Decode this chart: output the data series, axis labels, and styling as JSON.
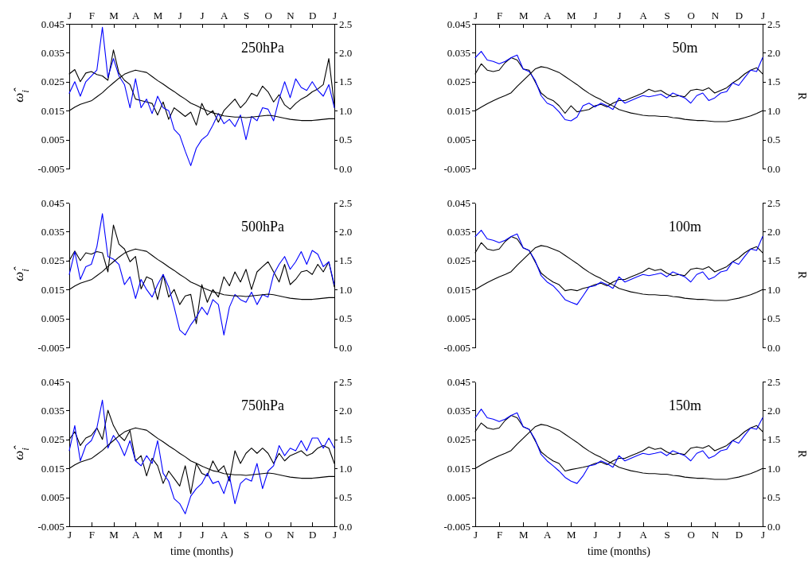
{
  "chart_data": [
    {
      "type": "line",
      "annotations": [
        "250hPa"
      ],
      "ylabel": "ω̂$_{i}$",
      "categories": [
        "J",
        null,
        null,
        null,
        "F",
        null,
        null,
        null,
        "M",
        null,
        null,
        null,
        "A",
        null,
        null,
        null,
        "M",
        null,
        null,
        null,
        "J",
        null,
        null,
        null,
        "J",
        null,
        null,
        null,
        "A",
        null,
        null,
        null,
        "S",
        null,
        null,
        null,
        "O",
        null,
        null,
        null,
        "N",
        null,
        null,
        null,
        "D",
        null,
        null,
        null,
        "J"
      ],
      "ylim": [
        -0.005,
        0.045
      ],
      "yticks": [
        -0.005,
        0.005,
        0.015,
        0.025,
        0.035,
        0.045
      ],
      "y2lim": [
        0,
        2.5
      ],
      "y2ticks": [
        {
          "value": 0,
          "label": "0.0"
        },
        0.5,
        {
          "value": 1,
          "label": "1.0"
        },
        1.5,
        {
          "value": 2,
          "label": "2.0"
        },
        2.5
      ],
      "series": [
        {
          "color": "#000000",
          "values": [
            0.0277,
            0.0292,
            0.025,
            0.028,
            0.0285,
            0.0275,
            0.027,
            0.0255,
            0.036,
            0.028,
            0.0255,
            0.024,
            0.019,
            0.0185,
            0.018,
            0.0175,
            0.0135,
            0.018,
            0.012,
            0.016,
            0.0145,
            0.013,
            0.0145,
            0.01,
            0.0175,
            0.0135,
            0.015,
            0.011,
            0.015,
            0.017,
            0.019,
            0.016,
            0.018,
            0.021,
            0.02,
            0.0235,
            0.0215,
            0.018,
            0.0205,
            0.017,
            0.0155,
            0.0175,
            0.019,
            0.02,
            0.0215,
            0.0225,
            0.024,
            0.033,
            0.017
          ]
        },
        {
          "color": "#0000ff",
          "values": [
            0.021,
            0.025,
            0.02,
            0.025,
            0.027,
            0.029,
            0.0438,
            0.0265,
            0.033,
            0.027,
            0.024,
            0.016,
            0.026,
            0.016,
            0.019,
            0.014,
            0.02,
            0.016,
            0.015,
            0.0085,
            0.0065,
            0.001,
            -0.004,
            0.002,
            0.005,
            0.0065,
            0.01,
            0.014,
            0.0105,
            0.012,
            0.0095,
            0.0135,
            0.005,
            0.013,
            0.0115,
            0.016,
            0.0155,
            0.0115,
            0.019,
            0.025,
            0.0195,
            0.026,
            0.023,
            0.022,
            0.025,
            0.022,
            0.02,
            0.024,
            0.016
          ]
        },
        {
          "color": "#000000",
          "axis": "y2",
          "values": [
            1.0,
            1.06,
            1.11,
            1.14,
            1.17,
            1.24,
            1.31,
            1.4,
            1.48,
            1.56,
            1.63,
            1.67,
            1.7,
            1.68,
            1.66,
            1.59,
            1.52,
            1.46,
            1.39,
            1.33,
            1.26,
            1.2,
            1.13,
            1.09,
            1.04,
            1.0,
            0.96,
            0.94,
            0.91,
            0.9,
            0.89,
            0.89,
            0.88,
            0.89,
            0.9,
            0.91,
            0.92,
            0.91,
            0.89,
            0.87,
            0.85,
            0.84,
            0.83,
            0.83,
            0.83,
            0.84,
            0.85,
            0.86,
            0.86
          ]
        }
      ]
    },
    {
      "type": "line",
      "annotations": [
        "50m"
      ],
      "y2label": "R",
      "categories": [
        "J",
        null,
        null,
        null,
        "F",
        null,
        null,
        null,
        "M",
        null,
        null,
        null,
        "A",
        null,
        null,
        null,
        "M",
        null,
        null,
        null,
        "J",
        null,
        null,
        null,
        "J",
        null,
        null,
        null,
        "A",
        null,
        null,
        null,
        "S",
        null,
        null,
        null,
        "O",
        null,
        null,
        null,
        "N",
        null,
        null,
        null,
        "D",
        null,
        null,
        null,
        "J"
      ],
      "ylim": [
        -0.005,
        0.045
      ],
      "yticks": [
        -0.005,
        0.005,
        0.015,
        0.025,
        0.035,
        0.045
      ],
      "y2lim": [
        0,
        2.5
      ],
      "y2ticks": [
        {
          "value": 0,
          "label": "0.0"
        },
        0.5,
        {
          "value": 1,
          "label": "1.0"
        },
        1.5,
        {
          "value": 2,
          "label": "2.0"
        },
        2.5
      ],
      "series": [
        {
          "color": "#000000",
          "values": [
            0.0277,
            0.0312,
            0.029,
            0.0285,
            0.029,
            0.0316,
            0.0333,
            0.0325,
            0.0294,
            0.029,
            0.025,
            0.0211,
            0.0194,
            0.0185,
            0.0167,
            0.0141,
            0.0167,
            0.0146,
            0.015,
            0.0154,
            0.0167,
            0.0172,
            0.0163,
            0.0176,
            0.0185,
            0.0185,
            0.0194,
            0.0202,
            0.0211,
            0.0224,
            0.0216,
            0.022,
            0.0207,
            0.0198,
            0.0202,
            0.0198,
            0.022,
            0.0224,
            0.022,
            0.0229,
            0.0211,
            0.022,
            0.0229,
            0.0246,
            0.0259,
            0.0277,
            0.029,
            0.0298,
            0.0277
          ]
        },
        {
          "color": "#0000ff",
          "values": [
            0.0333,
            0.0355,
            0.0325,
            0.032,
            0.0312,
            0.032,
            0.0333,
            0.0342,
            0.0294,
            0.0285,
            0.0255,
            0.0202,
            0.0176,
            0.0167,
            0.0146,
            0.0119,
            0.0115,
            0.0128,
            0.0167,
            0.0176,
            0.0163,
            0.0176,
            0.0167,
            0.0154,
            0.0194,
            0.0176,
            0.0185,
            0.0194,
            0.0202,
            0.0198,
            0.0202,
            0.0207,
            0.0194,
            0.0211,
            0.0202,
            0.0194,
            0.0176,
            0.0202,
            0.0211,
            0.0185,
            0.0194,
            0.0211,
            0.0216,
            0.0246,
            0.0237,
            0.0264,
            0.029,
            0.0285,
            0.0333
          ]
        },
        {
          "color": "#000000",
          "axis": "y2",
          "values": [
            1.0,
            1.06,
            1.12,
            1.17,
            1.22,
            1.26,
            1.31,
            1.42,
            1.52,
            1.62,
            1.72,
            1.76,
            1.74,
            1.7,
            1.66,
            1.59,
            1.52,
            1.45,
            1.37,
            1.3,
            1.24,
            1.19,
            1.13,
            1.08,
            1.02,
            0.99,
            0.96,
            0.94,
            0.92,
            0.91,
            0.91,
            0.9,
            0.9,
            0.88,
            0.87,
            0.85,
            0.84,
            0.83,
            0.83,
            0.82,
            0.81,
            0.81,
            0.81,
            0.83,
            0.85,
            0.88,
            0.91,
            0.95,
            1.0
          ]
        }
      ]
    },
    {
      "type": "line",
      "annotations": [
        "500hPa"
      ],
      "ylabel": "ω̂$_{i}$",
      "categories": [
        null,
        null,
        null,
        null,
        null,
        null,
        null,
        null,
        null,
        null,
        null,
        null,
        null,
        null,
        null,
        null,
        null,
        null,
        null,
        null,
        null,
        null,
        null,
        null,
        null,
        null,
        null,
        null,
        null,
        null,
        null,
        null,
        null,
        null,
        null,
        null,
        null,
        null,
        null,
        null,
        null,
        null,
        null,
        null,
        null,
        null,
        null,
        null,
        null
      ],
      "ylim": [
        -0.005,
        0.045
      ],
      "yticks": [
        -0.005,
        0.005,
        0.015,
        0.025,
        0.035,
        0.045
      ],
      "y2lim": [
        0,
        2.5
      ],
      "y2ticks": [
        {
          "value": 0,
          "label": "0.0"
        },
        0.5,
        {
          "value": 1,
          "label": "1.0"
        },
        1.5,
        {
          "value": 2,
          "label": "2.0"
        },
        2.5
      ],
      "series": [
        {
          "color": "#000000",
          "values": [
            0.025,
            0.0283,
            0.025,
            0.0277,
            0.0272,
            0.0281,
            0.0277,
            0.0211,
            0.0373,
            0.0307,
            0.029,
            0.0246,
            0.0264,
            0.0152,
            0.0194,
            0.0185,
            0.0115,
            0.0202,
            0.0124,
            0.015,
            0.0098,
            0.0128,
            0.0133,
            0.0032,
            0.0167,
            0.0106,
            0.015,
            0.0124,
            0.0194,
            0.0163,
            0.0211,
            0.0176,
            0.022,
            0.015,
            0.0211,
            0.0229,
            0.0246,
            0.0211,
            0.0176,
            0.0237,
            0.0167,
            0.0185,
            0.0211,
            0.0216,
            0.0202,
            0.0237,
            0.0211,
            0.0246,
            0.0159
          ]
        },
        {
          "color": "#0000ff",
          "values": [
            0.0202,
            0.0281,
            0.0185,
            0.0229,
            0.0237,
            0.0298,
            0.0412,
            0.0264,
            0.0255,
            0.0237,
            0.0167,
            0.0194,
            0.0119,
            0.0185,
            0.015,
            0.0124,
            0.0167,
            0.0202,
            0.0159,
            0.0089,
            0.001,
            -0.0007,
            0.0028,
            0.0054,
            0.0089,
            0.0063,
            0.0115,
            0.0098,
            -0.0007,
            0.0089,
            0.0133,
            0.0115,
            0.0106,
            0.0141,
            0.0098,
            0.0133,
            0.0124,
            0.0202,
            0.0237,
            0.0264,
            0.022,
            0.0246,
            0.0281,
            0.0237,
            0.0285,
            0.0272,
            0.0229,
            0.0246,
            0.0167
          ]
        },
        {
          "color": "#000000",
          "axis": "y2",
          "values": [
            1.0,
            1.06,
            1.11,
            1.14,
            1.17,
            1.24,
            1.31,
            1.4,
            1.48,
            1.56,
            1.63,
            1.67,
            1.7,
            1.68,
            1.66,
            1.59,
            1.52,
            1.46,
            1.39,
            1.33,
            1.26,
            1.2,
            1.13,
            1.09,
            1.04,
            1.0,
            0.96,
            0.94,
            0.91,
            0.9,
            0.89,
            0.89,
            0.88,
            0.89,
            0.9,
            0.91,
            0.92,
            0.91,
            0.89,
            0.87,
            0.85,
            0.84,
            0.83,
            0.83,
            0.83,
            0.84,
            0.85,
            0.86,
            0.86
          ]
        }
      ]
    },
    {
      "type": "line",
      "annotations": [
        "100m"
      ],
      "y2label": "R",
      "categories": [
        null,
        null,
        null,
        null,
        null,
        null,
        null,
        null,
        null,
        null,
        null,
        null,
        null,
        null,
        null,
        null,
        null,
        null,
        null,
        null,
        null,
        null,
        null,
        null,
        null,
        null,
        null,
        null,
        null,
        null,
        null,
        null,
        null,
        null,
        null,
        null,
        null,
        null,
        null,
        null,
        null,
        null,
        null,
        null,
        null,
        null,
        null,
        null,
        null
      ],
      "ylim": [
        -0.005,
        0.045
      ],
      "yticks": [
        -0.005,
        0.005,
        0.015,
        0.025,
        0.035,
        0.045
      ],
      "y2lim": [
        0,
        2.5
      ],
      "y2ticks": [
        {
          "value": 0,
          "label": "0.0"
        },
        0.5,
        {
          "value": 1,
          "label": "1.0"
        },
        1.5,
        {
          "value": 2,
          "label": "2.0"
        },
        2.5
      ],
      "series": [
        {
          "color": "#000000",
          "values": [
            0.0277,
            0.0312,
            0.029,
            0.0285,
            0.029,
            0.0316,
            0.0333,
            0.0325,
            0.0294,
            0.0285,
            0.0246,
            0.0207,
            0.019,
            0.0176,
            0.0167,
            0.0146,
            0.015,
            0.0146,
            0.0154,
            0.0159,
            0.0167,
            0.0172,
            0.0163,
            0.0176,
            0.0185,
            0.0185,
            0.0194,
            0.0202,
            0.0211,
            0.0224,
            0.0216,
            0.022,
            0.0207,
            0.0198,
            0.0202,
            0.0198,
            0.022,
            0.0224,
            0.022,
            0.0229,
            0.0211,
            0.022,
            0.0229,
            0.0246,
            0.0259,
            0.0277,
            0.029,
            0.0298,
            0.0277
          ]
        },
        {
          "color": "#0000ff",
          "values": [
            0.0333,
            0.0355,
            0.0325,
            0.032,
            0.0312,
            0.032,
            0.0333,
            0.0342,
            0.0294,
            0.0285,
            0.025,
            0.0198,
            0.0176,
            0.0163,
            0.0141,
            0.0115,
            0.0106,
            0.0098,
            0.0128,
            0.0159,
            0.0163,
            0.0176,
            0.0167,
            0.0154,
            0.0194,
            0.0176,
            0.0185,
            0.0194,
            0.0202,
            0.0198,
            0.0202,
            0.0207,
            0.0194,
            0.0211,
            0.0202,
            0.0194,
            0.0176,
            0.0202,
            0.0211,
            0.0185,
            0.0194,
            0.0211,
            0.0216,
            0.0246,
            0.0237,
            0.0264,
            0.029,
            0.0285,
            0.0333
          ]
        },
        {
          "color": "#000000",
          "axis": "y2",
          "values": [
            1.0,
            1.06,
            1.12,
            1.17,
            1.22,
            1.26,
            1.31,
            1.42,
            1.52,
            1.62,
            1.72,
            1.76,
            1.74,
            1.7,
            1.66,
            1.59,
            1.52,
            1.45,
            1.37,
            1.3,
            1.24,
            1.19,
            1.13,
            1.08,
            1.02,
            0.99,
            0.96,
            0.94,
            0.92,
            0.91,
            0.91,
            0.9,
            0.9,
            0.88,
            0.87,
            0.85,
            0.84,
            0.83,
            0.83,
            0.82,
            0.81,
            0.81,
            0.81,
            0.83,
            0.85,
            0.88,
            0.91,
            0.95,
            1.0
          ]
        }
      ]
    },
    {
      "type": "line",
      "annotations": [
        "750hPa"
      ],
      "ylabel": "ω̂$_{i}$",
      "xlabel": "time (months)",
      "categories": [
        "J",
        null,
        null,
        null,
        "F",
        null,
        null,
        null,
        "M",
        null,
        null,
        null,
        "A",
        null,
        null,
        null,
        "M",
        null,
        null,
        null,
        "J",
        null,
        null,
        null,
        "J",
        null,
        null,
        null,
        "A",
        null,
        null,
        null,
        "S",
        null,
        null,
        null,
        "O",
        null,
        null,
        null,
        "N",
        null,
        null,
        null,
        "D",
        null,
        null,
        null,
        "J"
      ],
      "ylim": [
        -0.005,
        0.045
      ],
      "yticks": [
        -0.005,
        0.005,
        0.015,
        0.025,
        0.035,
        0.045
      ],
      "y2lim": [
        0,
        2.5
      ],
      "y2ticks": [
        {
          "value": 0,
          "label": "0.0"
        },
        0.5,
        {
          "value": 1,
          "label": "1.0"
        },
        1.5,
        {
          "value": 2,
          "label": "2.0"
        },
        2.5
      ],
      "series": [
        {
          "color": "#000000",
          "values": [
            0.025,
            0.0277,
            0.0229,
            0.0255,
            0.0264,
            0.029,
            0.025,
            0.0351,
            0.0298,
            0.0264,
            0.0246,
            0.0281,
            0.0176,
            0.0194,
            0.0124,
            0.0185,
            0.0159,
            0.0098,
            0.0141,
            0.0115,
            0.0089,
            0.0159,
            0.0063,
            0.0167,
            0.0133,
            0.0124,
            0.0176,
            0.0141,
            0.0159,
            0.0106,
            0.0211,
            0.0167,
            0.0202,
            0.022,
            0.0202,
            0.022,
            0.0202,
            0.0167,
            0.0202,
            0.0176,
            0.0194,
            0.0202,
            0.0211,
            0.0194,
            0.0202,
            0.022,
            0.0229,
            0.022,
            0.0167
          ]
        },
        {
          "color": "#0000ff",
          "values": [
            0.0211,
            0.0298,
            0.0176,
            0.0229,
            0.0246,
            0.029,
            0.0386,
            0.022,
            0.0264,
            0.0237,
            0.0194,
            0.0246,
            0.0176,
            0.0159,
            0.0194,
            0.0167,
            0.0246,
            0.0133,
            0.0106,
            0.0045,
            0.0028,
            -0.0007,
            0.0054,
            0.008,
            0.0098,
            0.0133,
            0.0098,
            0.0106,
            0.0063,
            0.0124,
            0.0028,
            0.0098,
            0.0115,
            0.0106,
            0.0167,
            0.008,
            0.0141,
            0.0159,
            0.0229,
            0.0194,
            0.022,
            0.0211,
            0.0246,
            0.0211,
            0.0255,
            0.0255,
            0.022,
            0.0255,
            0.022
          ]
        },
        {
          "color": "#000000",
          "axis": "y2",
          "values": [
            1.0,
            1.06,
            1.11,
            1.14,
            1.17,
            1.24,
            1.31,
            1.4,
            1.48,
            1.56,
            1.63,
            1.67,
            1.7,
            1.68,
            1.66,
            1.59,
            1.52,
            1.46,
            1.39,
            1.33,
            1.26,
            1.2,
            1.13,
            1.09,
            1.04,
            1.0,
            0.96,
            0.94,
            0.91,
            0.9,
            0.89,
            0.89,
            0.88,
            0.89,
            0.9,
            0.91,
            0.92,
            0.91,
            0.89,
            0.87,
            0.85,
            0.84,
            0.83,
            0.83,
            0.83,
            0.84,
            0.85,
            0.86,
            0.86
          ]
        }
      ]
    },
    {
      "type": "line",
      "annotations": [
        "150m"
      ],
      "y2label": "R",
      "xlabel": "time (months)",
      "categories": [
        "J",
        null,
        null,
        null,
        "F",
        null,
        null,
        null,
        "M",
        null,
        null,
        null,
        "A",
        null,
        null,
        null,
        "M",
        null,
        null,
        null,
        "J",
        null,
        null,
        null,
        "J",
        null,
        null,
        null,
        "A",
        null,
        null,
        null,
        "S",
        null,
        null,
        null,
        "O",
        null,
        null,
        null,
        "N",
        null,
        null,
        null,
        "D",
        null,
        null,
        null,
        "J"
      ],
      "ylim": [
        -0.005,
        0.045
      ],
      "yticks": [
        -0.005,
        0.005,
        0.015,
        0.025,
        0.035,
        0.045
      ],
      "y2lim": [
        0,
        2.5
      ],
      "y2ticks": [
        {
          "value": 0,
          "label": "0.0"
        },
        0.5,
        {
          "value": 1,
          "label": "1.0"
        },
        1.5,
        {
          "value": 2,
          "label": "2.0"
        },
        2.5
      ],
      "series": [
        {
          "color": "#000000",
          "values": [
            0.0277,
            0.0307,
            0.029,
            0.0285,
            0.029,
            0.0316,
            0.0333,
            0.0325,
            0.0294,
            0.0285,
            0.0246,
            0.0207,
            0.019,
            0.0176,
            0.0167,
            0.0141,
            0.0146,
            0.015,
            0.0154,
            0.0159,
            0.0167,
            0.0172,
            0.0163,
            0.0176,
            0.0185,
            0.0185,
            0.0194,
            0.0202,
            0.0211,
            0.0224,
            0.0216,
            0.022,
            0.0207,
            0.0198,
            0.0202,
            0.0198,
            0.022,
            0.0224,
            0.022,
            0.0229,
            0.0211,
            0.022,
            0.0229,
            0.0246,
            0.0259,
            0.0277,
            0.029,
            0.0298,
            0.0277
          ]
        },
        {
          "color": "#0000ff",
          "values": [
            0.0325,
            0.0355,
            0.0325,
            0.032,
            0.0312,
            0.032,
            0.0333,
            0.0342,
            0.0294,
            0.0285,
            0.025,
            0.0198,
            0.0176,
            0.0159,
            0.0141,
            0.0119,
            0.0106,
            0.0098,
            0.0124,
            0.0159,
            0.0163,
            0.0176,
            0.0167,
            0.0154,
            0.0194,
            0.0176,
            0.0185,
            0.0194,
            0.0202,
            0.0198,
            0.0202,
            0.0207,
            0.0194,
            0.0211,
            0.0202,
            0.0194,
            0.0176,
            0.0202,
            0.0211,
            0.0185,
            0.0194,
            0.0211,
            0.0216,
            0.0246,
            0.0237,
            0.0264,
            0.029,
            0.0285,
            0.0325
          ]
        },
        {
          "color": "#000000",
          "axis": "y2",
          "values": [
            1.0,
            1.06,
            1.12,
            1.17,
            1.22,
            1.26,
            1.31,
            1.42,
            1.52,
            1.62,
            1.72,
            1.76,
            1.74,
            1.7,
            1.66,
            1.59,
            1.52,
            1.45,
            1.37,
            1.3,
            1.24,
            1.19,
            1.13,
            1.08,
            1.02,
            0.99,
            0.96,
            0.94,
            0.92,
            0.91,
            0.91,
            0.9,
            0.9,
            0.88,
            0.87,
            0.85,
            0.84,
            0.83,
            0.83,
            0.82,
            0.81,
            0.81,
            0.81,
            0.83,
            0.85,
            0.88,
            0.91,
            0.95,
            1.0
          ]
        }
      ]
    }
  ]
}
